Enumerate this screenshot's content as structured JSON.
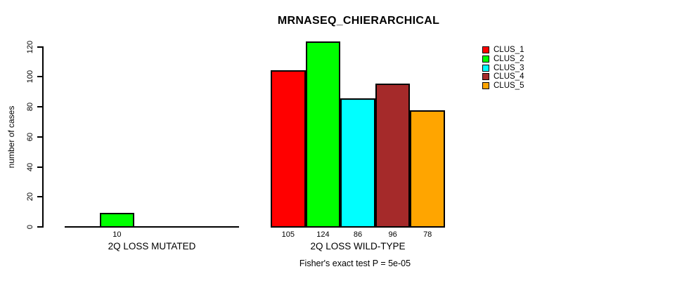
{
  "title": "MRNASEQ_CHIERARCHICAL",
  "subtitle": "Fisher's exact test P = 5e-05",
  "ylabel": "number of cases",
  "legend": {
    "entries": [
      {
        "label": "CLUS_1",
        "color": "#FF0000"
      },
      {
        "label": "CLUS_2",
        "color": "#00FF00"
      },
      {
        "label": "CLUS_3",
        "color": "#00FFFF"
      },
      {
        "label": "CLUS_4",
        "color": "#A52A2A"
      },
      {
        "label": "CLUS_5",
        "color": "#FFA500"
      }
    ]
  },
  "chart_data": {
    "type": "bar",
    "title": "MRNASEQ_CHIERARCHICAL",
    "ylabel": "number of cases",
    "xlabel": "",
    "ylim": [
      0,
      120
    ],
    "yticks": [
      0,
      20,
      40,
      60,
      80,
      100,
      120
    ],
    "series": [
      "CLUS_1",
      "CLUS_2",
      "CLUS_3",
      "CLUS_4",
      "CLUS_5"
    ],
    "colors": [
      "#FF0000",
      "#00FF00",
      "#00FFFF",
      "#A52A2A",
      "#FFA500"
    ],
    "groups": [
      {
        "label": "2Q LOSS MUTATED",
        "values": [
          0,
          10,
          0,
          0,
          0
        ]
      },
      {
        "label": "2Q LOSS WILD-TYPE",
        "values": [
          105,
          124,
          86,
          96,
          78
        ]
      }
    ],
    "annotation": "Fisher's exact test P = 5e-05",
    "legend_position": "top-right",
    "grid": false,
    "bar_borders": true
  }
}
